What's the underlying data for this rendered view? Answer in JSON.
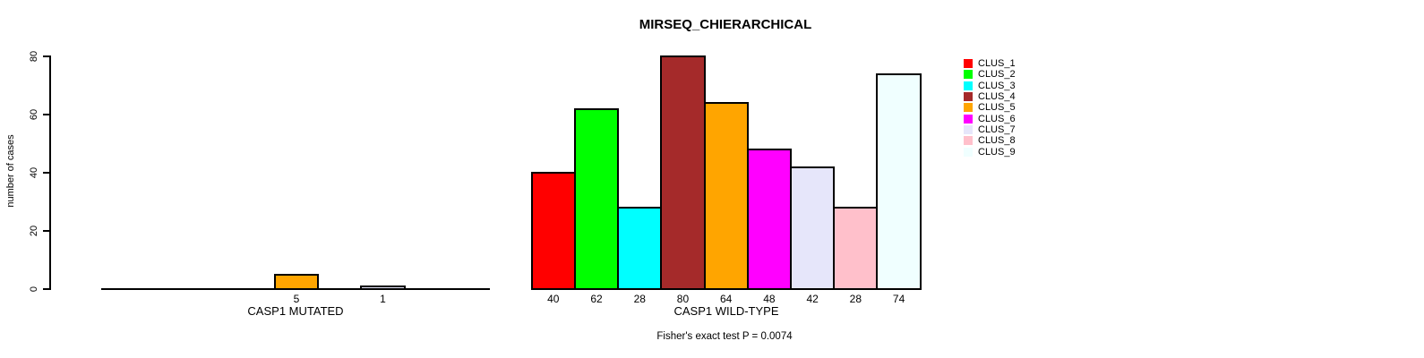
{
  "chart_data": {
    "type": "bar",
    "title": "MIRSEQ_CHIERARCHICAL",
    "ylabel": "number of cases",
    "ylim": [
      0,
      80
    ],
    "yticks": [
      0,
      20,
      40,
      60,
      80
    ],
    "grid": false,
    "annotation": "Fisher's exact test P = 0.0074",
    "categories": [
      "CLUS_1",
      "CLUS_2",
      "CLUS_3",
      "CLUS_4",
      "CLUS_5",
      "CLUS_6",
      "CLUS_7",
      "CLUS_8",
      "CLUS_9"
    ],
    "colors": [
      "#FF0000",
      "#00FF00",
      "#00FFFF",
      "#A52A2A",
      "#FFA500",
      "#FF00FF",
      "#E6E6FA",
      "#FFC0CB",
      "#F0FFFF"
    ],
    "panels": [
      {
        "xlabel": "CASP1 MUTATED",
        "values": [
          0,
          0,
          0,
          0,
          5,
          0,
          1,
          0,
          0
        ],
        "bar_labels": [
          "",
          "",
          "",
          "",
          "5",
          "",
          "1",
          "",
          ""
        ]
      },
      {
        "xlabel": "CASP1 WILD-TYPE",
        "values": [
          40,
          62,
          28,
          80,
          64,
          48,
          42,
          28,
          74
        ],
        "bar_labels": [
          "40",
          "62",
          "28",
          "80",
          "64",
          "48",
          "42",
          "28",
          "74"
        ]
      }
    ],
    "legend": {
      "position": "right",
      "entries": [
        {
          "label": "CLUS_1",
          "color": "#FF0000"
        },
        {
          "label": "CLUS_2",
          "color": "#00FF00"
        },
        {
          "label": "CLUS_3",
          "color": "#00FFFF"
        },
        {
          "label": "CLUS_4",
          "color": "#A52A2A"
        },
        {
          "label": "CLUS_5",
          "color": "#FFA500"
        },
        {
          "label": "CLUS_6",
          "color": "#FF00FF"
        },
        {
          "label": "CLUS_7",
          "color": "#E6E6FA"
        },
        {
          "label": "CLUS_8",
          "color": "#FFC0CB"
        },
        {
          "label": "CLUS_9",
          "color": "#F0FFFF"
        }
      ]
    }
  }
}
